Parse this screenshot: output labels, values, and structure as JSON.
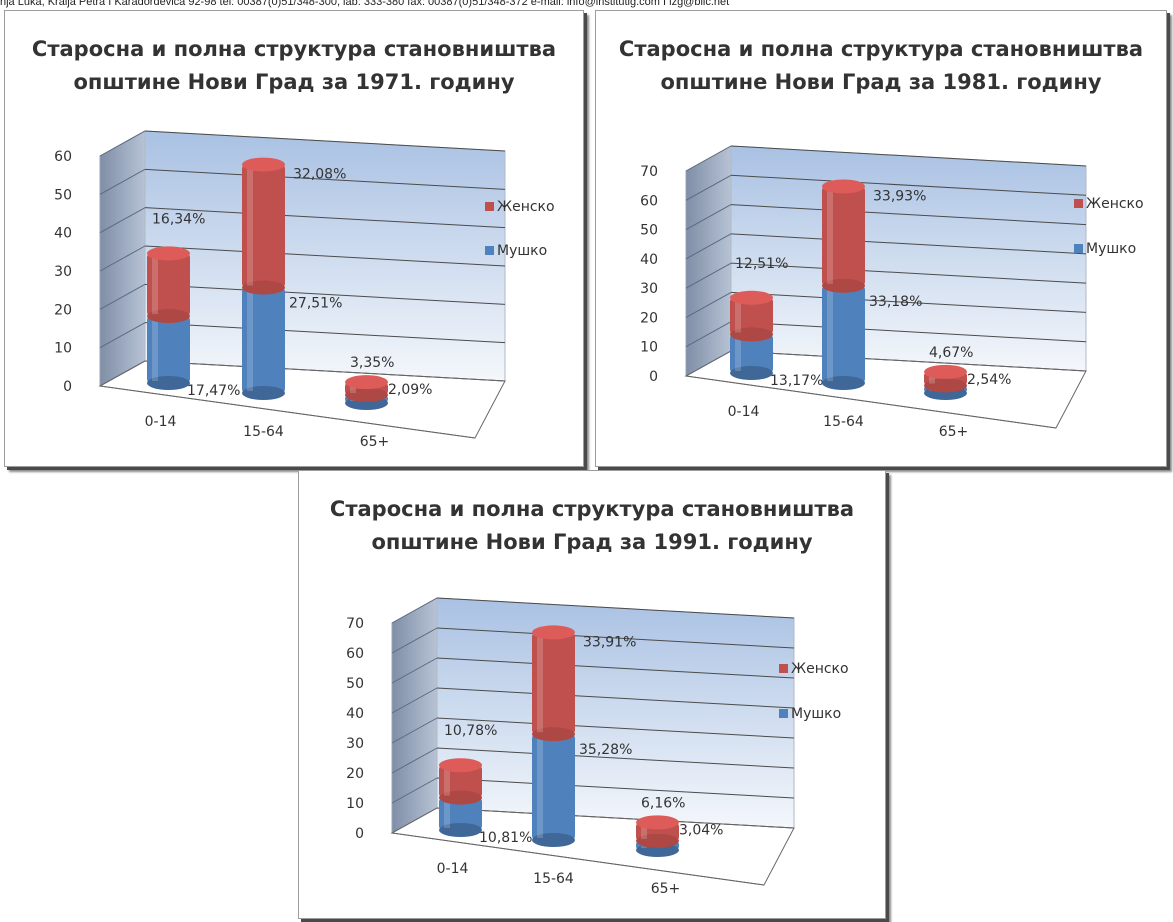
{
  "header_text": "nja Luka, Kralja Petra I Karađorđevića 92-98 tel: 00387(0)51/348-300, lab: 333-380 fax: 00387(0)51/348-372 e-mail: info@institutig.com I izg@blic.net",
  "colors": {
    "female": "#c0504d",
    "male": "#4f81bd",
    "wall": "#b8cce4",
    "side_wall": "#8e9bb0"
  },
  "chart_data": [
    {
      "type": "bar",
      "stacked": true,
      "title_lines": [
        "Старосна и полна структура становништва",
        "општине Нови Град за 1971. годину"
      ],
      "categories": [
        "0-14",
        "15-64",
        "65+"
      ],
      "series": [
        {
          "name": "Мушко",
          "values": [
            17.47,
            27.51,
            2.09
          ],
          "labels": [
            "17,47%",
            "27,51%",
            "2,09%"
          ]
        },
        {
          "name": "Женско",
          "values": [
            16.34,
            32.08,
            3.35
          ],
          "labels": [
            "16,34%",
            "32,08%",
            "3,35%"
          ]
        }
      ],
      "ylim": [
        0,
        60
      ],
      "yticks": [
        "0",
        "10",
        "20",
        "30",
        "40",
        "50",
        "60"
      ],
      "legend": [
        "Женско",
        "Мушко"
      ],
      "legend_position": "right",
      "grid": true
    },
    {
      "type": "bar",
      "stacked": true,
      "title_lines": [
        "Старосна и полна структура становништва",
        "општине Нови Град за 1981. годину"
      ],
      "categories": [
        "0-14",
        "15-64",
        "65+"
      ],
      "series": [
        {
          "name": "Мушко",
          "values": [
            13.17,
            33.18,
            2.54
          ],
          "labels": [
            "13,17%",
            "33,18%",
            "2,54%"
          ]
        },
        {
          "name": "Женско",
          "values": [
            12.51,
            33.93,
            4.67
          ],
          "labels": [
            "12,51%",
            "33,93%",
            "4,67%"
          ]
        }
      ],
      "ylim": [
        0,
        70
      ],
      "yticks": [
        "0",
        "10",
        "20",
        "30",
        "40",
        "50",
        "60",
        "70"
      ],
      "legend": [
        "Женско",
        "Мушко"
      ],
      "legend_position": "right",
      "grid": true
    },
    {
      "type": "bar",
      "stacked": true,
      "title_lines": [
        "Старосна и полна структура становништва",
        "општине Нови Град за 1991. годину"
      ],
      "categories": [
        "0-14",
        "15-64",
        "65+"
      ],
      "series": [
        {
          "name": "Мушко",
          "values": [
            10.81,
            35.28,
            3.04
          ],
          "labels": [
            "10,81%",
            "35,28%",
            "3,04%"
          ]
        },
        {
          "name": "Женско",
          "values": [
            10.78,
            33.91,
            6.16
          ],
          "labels": [
            "10,78%",
            "33,91%",
            "6,16%"
          ]
        }
      ],
      "ylim": [
        0,
        70
      ],
      "yticks": [
        "0",
        "10",
        "20",
        "30",
        "40",
        "50",
        "60",
        "70"
      ],
      "legend": [
        "Женско",
        "Мушко"
      ],
      "legend_position": "right",
      "grid": true
    }
  ]
}
